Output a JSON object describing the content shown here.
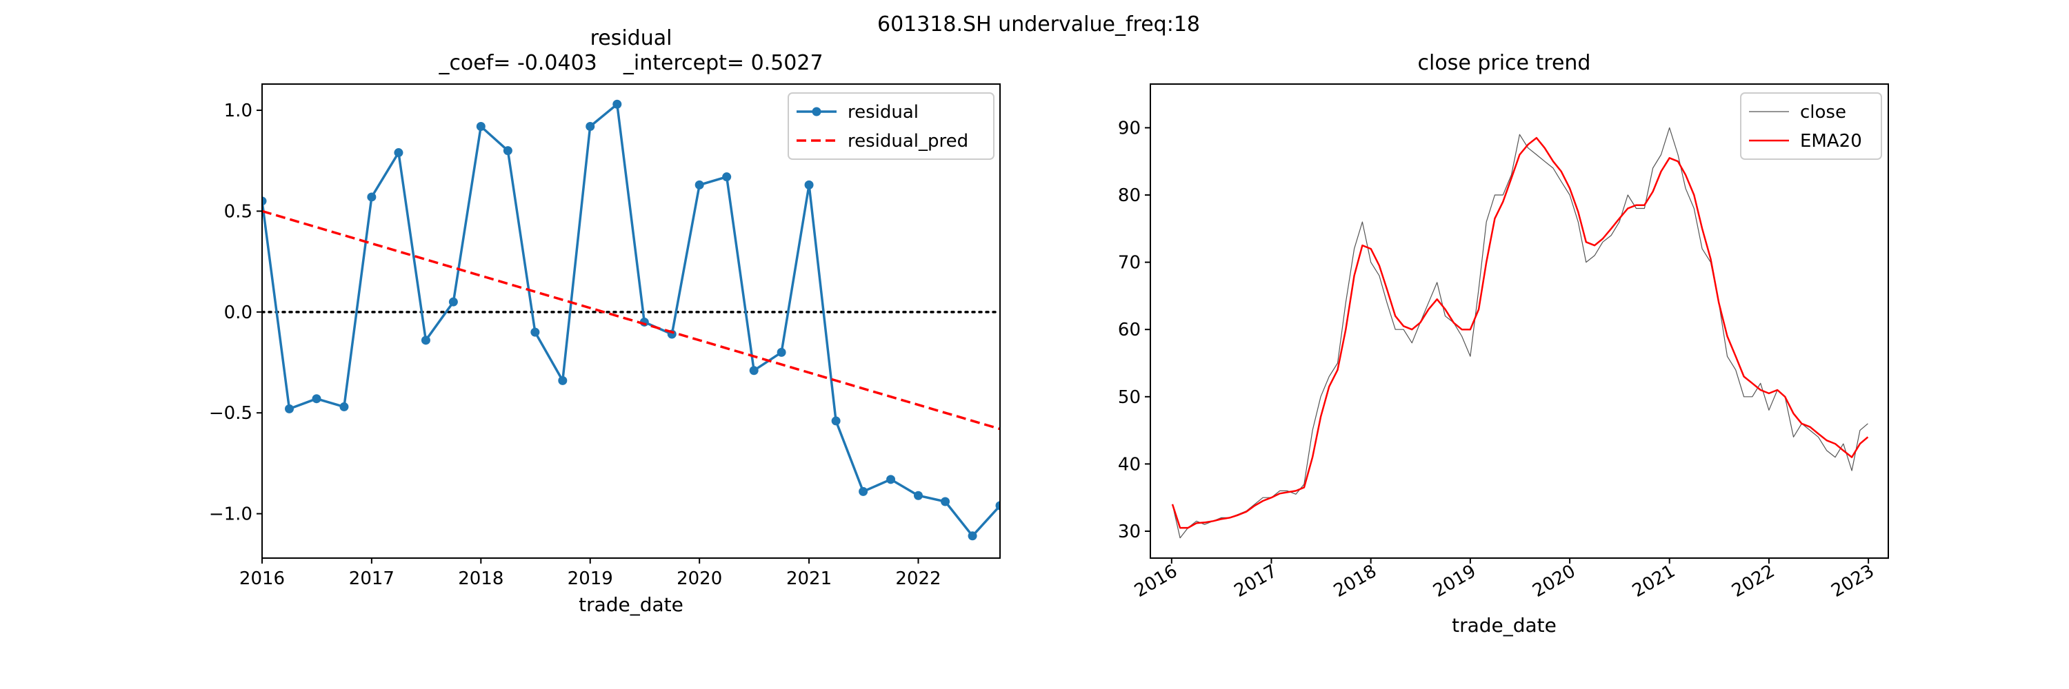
{
  "figure": {
    "suptitle": "601318.SH undervalue_freq:18"
  },
  "chart_data": [
    {
      "type": "line",
      "title": "residual",
      "title_line2": "_coef= -0.0403    _intercept= 0.5027",
      "xlabel": "trade_date",
      "ylabel": "",
      "xlim": [
        "2016-01-01",
        "2022-10-01"
      ],
      "ylim": [
        -1.22,
        1.13
      ],
      "xticks": [
        "2016",
        "2017",
        "2018",
        "2019",
        "2020",
        "2021",
        "2022"
      ],
      "yticks": [
        "1.0",
        "0.5",
        "0.0",
        "−0.5",
        "−1.0"
      ],
      "ytick_values": [
        1.0,
        0.5,
        0.0,
        -0.5,
        -1.0
      ],
      "grid": false,
      "legend": "top-right",
      "zero_line": {
        "y": 0,
        "style": "dotted",
        "color": "#000000"
      },
      "series": [
        {
          "name": "residual",
          "color": "#1f77b4",
          "marker": "dot",
          "x": [
            "2016-01-01",
            "2016-04-01",
            "2016-07-01",
            "2016-10-01",
            "2017-01-01",
            "2017-04-01",
            "2017-07-01",
            "2017-10-01",
            "2018-01-01",
            "2018-04-01",
            "2018-07-01",
            "2018-10-01",
            "2019-01-01",
            "2019-04-01",
            "2019-07-01",
            "2019-10-01",
            "2020-01-01",
            "2020-04-01",
            "2020-07-01",
            "2020-10-01",
            "2021-01-01",
            "2021-04-01",
            "2021-07-01",
            "2021-10-01",
            "2022-01-01",
            "2022-04-01",
            "2022-07-01",
            "2022-10-01"
          ],
          "values": [
            0.55,
            -0.48,
            -0.43,
            -0.47,
            0.57,
            0.79,
            -0.14,
            0.05,
            0.92,
            0.8,
            -0.1,
            -0.34,
            0.92,
            1.03,
            -0.05,
            -0.11,
            0.63,
            0.67,
            -0.29,
            -0.2,
            0.63,
            -0.54,
            -0.89,
            -0.83,
            -0.91,
            -0.94,
            -1.11,
            -0.96
          ]
        },
        {
          "name": "residual_pred",
          "color": "#ff0000",
          "style": "dashed",
          "x": [
            "2016-01-01",
            "2022-10-01"
          ],
          "values": [
            0.5,
            -0.58
          ]
        }
      ]
    },
    {
      "type": "line",
      "title": "close price trend",
      "xlabel": "trade_date",
      "ylabel": "",
      "xlim": [
        "2015-10-15",
        "2023-03-15"
      ],
      "ylim": [
        26,
        96.5
      ],
      "xticks": [
        "2016",
        "2017",
        "2018",
        "2019",
        "2020",
        "2021",
        "2022",
        "2023"
      ],
      "yticks": [
        "90",
        "80",
        "70",
        "60",
        "50",
        "40",
        "30"
      ],
      "ytick_values": [
        90,
        80,
        70,
        60,
        50,
        40,
        30
      ],
      "grid": false,
      "legend": "top-right",
      "series": [
        {
          "name": "close",
          "color": "#555555",
          "x": [
            "2016-01-04",
            "2016-02-01",
            "2016-03-01",
            "2016-04-01",
            "2016-05-01",
            "2016-06-01",
            "2016-07-01",
            "2016-08-01",
            "2016-09-01",
            "2016-10-01",
            "2016-11-01",
            "2016-12-01",
            "2017-01-01",
            "2017-02-01",
            "2017-03-01",
            "2017-04-01",
            "2017-05-01",
            "2017-06-01",
            "2017-07-01",
            "2017-08-01",
            "2017-09-01",
            "2017-10-01",
            "2017-11-01",
            "2017-12-01",
            "2018-01-01",
            "2018-02-01",
            "2018-03-01",
            "2018-04-01",
            "2018-05-01",
            "2018-06-01",
            "2018-07-01",
            "2018-08-01",
            "2018-09-01",
            "2018-10-01",
            "2018-11-01",
            "2018-12-01",
            "2019-01-01",
            "2019-02-01",
            "2019-03-01",
            "2019-04-01",
            "2019-05-01",
            "2019-06-01",
            "2019-07-01",
            "2019-08-01",
            "2019-09-01",
            "2019-10-01",
            "2019-11-01",
            "2019-12-01",
            "2020-01-01",
            "2020-02-01",
            "2020-03-01",
            "2020-04-01",
            "2020-05-01",
            "2020-06-01",
            "2020-07-01",
            "2020-08-01",
            "2020-09-01",
            "2020-10-01",
            "2020-11-01",
            "2020-12-01",
            "2021-01-01",
            "2021-02-01",
            "2021-03-01",
            "2021-04-01",
            "2021-05-01",
            "2021-06-01",
            "2021-07-01",
            "2021-08-01",
            "2021-09-01",
            "2021-10-01",
            "2021-11-01",
            "2021-12-01",
            "2022-01-01",
            "2022-02-01",
            "2022-03-01",
            "2022-04-01",
            "2022-05-01",
            "2022-06-01",
            "2022-07-01",
            "2022-08-01",
            "2022-09-01",
            "2022-10-01",
            "2022-11-01",
            "2022-12-01",
            "2022-12-30"
          ],
          "values": [
            34,
            29,
            30.5,
            31.5,
            31,
            31.5,
            32,
            32,
            32.5,
            33,
            34,
            35,
            35,
            36,
            36,
            35.5,
            37,
            45,
            50,
            53,
            55,
            64,
            72,
            76,
            70,
            68,
            64,
            60,
            60,
            58,
            61,
            64,
            67,
            62,
            61,
            59,
            56,
            66,
            76,
            80,
            80,
            83,
            89,
            87,
            86,
            85,
            84,
            82,
            80,
            76,
            70,
            71,
            73,
            74,
            76,
            80,
            78,
            78,
            84,
            86,
            90,
            86,
            81,
            78,
            72,
            70,
            64,
            56,
            54,
            50,
            50,
            52,
            48,
            51,
            50,
            44,
            46,
            45,
            44,
            42,
            41,
            43,
            39,
            45,
            46
          ]
        },
        {
          "name": "EMA20",
          "color": "#ff0000",
          "x": [
            "2016-01-04",
            "2016-02-01",
            "2016-03-01",
            "2016-04-01",
            "2016-05-01",
            "2016-06-01",
            "2016-07-01",
            "2016-08-01",
            "2016-09-01",
            "2016-10-01",
            "2016-11-01",
            "2016-12-01",
            "2017-01-01",
            "2017-02-01",
            "2017-03-01",
            "2017-04-01",
            "2017-05-01",
            "2017-06-01",
            "2017-07-01",
            "2017-08-01",
            "2017-09-01",
            "2017-10-01",
            "2017-11-01",
            "2017-12-01",
            "2018-01-01",
            "2018-02-01",
            "2018-03-01",
            "2018-04-01",
            "2018-05-01",
            "2018-06-01",
            "2018-07-01",
            "2018-08-01",
            "2018-09-01",
            "2018-10-01",
            "2018-11-01",
            "2018-12-01",
            "2019-01-01",
            "2019-02-01",
            "2019-03-01",
            "2019-04-01",
            "2019-05-01",
            "2019-06-01",
            "2019-07-01",
            "2019-08-01",
            "2019-09-01",
            "2019-10-01",
            "2019-11-01",
            "2019-12-01",
            "2020-01-01",
            "2020-02-01",
            "2020-03-01",
            "2020-04-01",
            "2020-05-01",
            "2020-06-01",
            "2020-07-01",
            "2020-08-01",
            "2020-09-01",
            "2020-10-01",
            "2020-11-01",
            "2020-12-01",
            "2021-01-01",
            "2021-02-01",
            "2021-03-01",
            "2021-04-01",
            "2021-05-01",
            "2021-06-01",
            "2021-07-01",
            "2021-08-01",
            "2021-09-01",
            "2021-10-01",
            "2021-11-01",
            "2021-12-01",
            "2022-01-01",
            "2022-02-01",
            "2022-03-01",
            "2022-04-01",
            "2022-05-01",
            "2022-06-01",
            "2022-07-01",
            "2022-08-01",
            "2022-09-01",
            "2022-10-01",
            "2022-11-01",
            "2022-12-01",
            "2022-12-30"
          ],
          "values": [
            34,
            30.5,
            30.5,
            31.2,
            31.3,
            31.5,
            31.8,
            32,
            32.4,
            32.9,
            33.8,
            34.5,
            35,
            35.6,
            35.8,
            36,
            36.5,
            41,
            47,
            51.5,
            54,
            60,
            68,
            72.5,
            72,
            69.5,
            66,
            62,
            60.5,
            60,
            61,
            63,
            64.5,
            63,
            61,
            60,
            60,
            63,
            70,
            76.5,
            79,
            82.5,
            86,
            87.5,
            88.5,
            87,
            85,
            83.5,
            81,
            77.5,
            73,
            72.5,
            73.5,
            75,
            76.5,
            78,
            78.5,
            78.5,
            80.5,
            83.5,
            85.5,
            85,
            83,
            80,
            75,
            70.5,
            64,
            59,
            56,
            53,
            52,
            51,
            50.5,
            51,
            50,
            47.5,
            46,
            45.5,
            44.5,
            43.5,
            43,
            42,
            41,
            43,
            44
          ]
        }
      ]
    }
  ]
}
